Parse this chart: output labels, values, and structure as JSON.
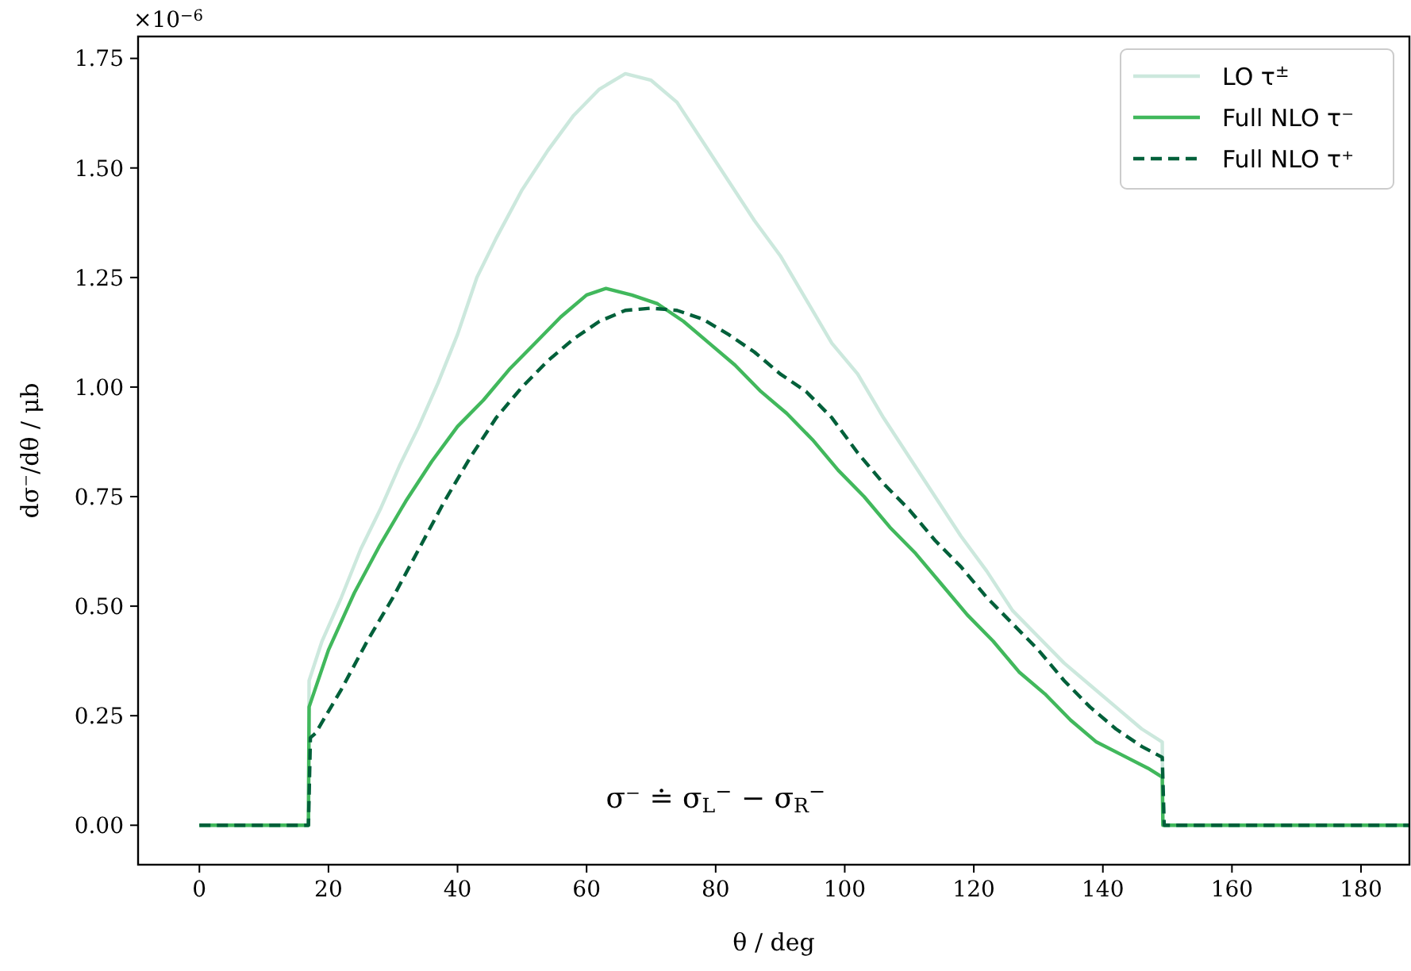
{
  "chart_data": {
    "type": "line",
    "xlabel": "θ / deg",
    "ylabel": "dσ⁻/dθ / μb",
    "xlim": [
      -9.5,
      187.5
    ],
    "ylim": [
      -0.09,
      1.8
    ],
    "xticks": [
      0,
      20,
      40,
      60,
      80,
      100,
      120,
      140,
      160,
      180
    ],
    "yticks": [
      {
        "value": 0,
        "label": "0.00"
      },
      {
        "value": 0.25,
        "label": "0.25"
      },
      {
        "value": 0.5,
        "label": "0.50"
      },
      {
        "value": 0.75,
        "label": "0.75"
      },
      {
        "value": 1,
        "label": "1.00"
      },
      {
        "value": 1.25,
        "label": "1.25"
      },
      {
        "value": 1.5,
        "label": "1.50"
      },
      {
        "value": 1.75,
        "label": "1.75"
      }
    ],
    "grid": false,
    "legend": "top right",
    "annotations": [
      "σ⁻ ≐ σ$_{L}$$^{−}$ − σ$_{R}$$^{−}$",
      "×10$^{−6}$"
    ],
    "series": [
      {
        "name": "LO τ$^{±}$",
        "color": "#cce8dd",
        "line_style": "solid",
        "x": [
          0,
          16.9,
          17,
          19,
          22,
          25,
          28,
          31,
          34,
          37,
          40,
          43,
          46,
          50,
          54,
          58,
          62,
          66,
          70,
          74,
          78,
          82,
          86,
          90,
          94,
          98,
          102,
          106,
          110,
          114,
          118,
          122,
          126,
          130,
          134,
          138,
          142,
          146,
          149.2,
          149.3,
          187.5
        ],
        "values": [
          0,
          0,
          0.33,
          0.42,
          0.52,
          0.63,
          0.72,
          0.82,
          0.91,
          1.01,
          1.12,
          1.25,
          1.34,
          1.45,
          1.54,
          1.62,
          1.68,
          1.715,
          1.7,
          1.65,
          1.56,
          1.47,
          1.38,
          1.3,
          1.2,
          1.1,
          1.03,
          0.93,
          0.84,
          0.75,
          0.66,
          0.58,
          0.49,
          0.43,
          0.37,
          0.32,
          0.27,
          0.22,
          0.19,
          0,
          0
        ]
      },
      {
        "name": "Full NLO τ⁻",
        "color": "#41b85c",
        "line_style": "solid",
        "x": [
          0,
          16.9,
          17,
          20,
          24,
          28,
          32,
          36,
          40,
          44,
          48,
          52,
          56,
          60,
          63,
          67,
          71,
          75,
          79,
          83,
          87,
          91,
          95,
          99,
          103,
          107,
          111,
          115,
          119,
          123,
          127,
          131,
          135,
          139,
          143,
          147,
          149.2,
          149.3,
          187.5
        ],
        "values": [
          0,
          0,
          0.27,
          0.4,
          0.53,
          0.64,
          0.74,
          0.83,
          0.91,
          0.97,
          1.04,
          1.1,
          1.16,
          1.21,
          1.225,
          1.21,
          1.19,
          1.15,
          1.1,
          1.05,
          0.99,
          0.94,
          0.88,
          0.81,
          0.75,
          0.68,
          0.62,
          0.55,
          0.48,
          0.42,
          0.35,
          0.3,
          0.24,
          0.19,
          0.16,
          0.13,
          0.11,
          0,
          0
        ]
      },
      {
        "name": "Full NLO τ⁺",
        "color": "#00603a",
        "line_style": "dashed",
        "x": [
          0,
          16.9,
          17.2,
          18,
          22,
          26,
          30,
          34,
          38,
          42,
          46,
          50,
          54,
          58,
          62,
          66,
          70,
          74,
          78,
          82,
          86,
          90,
          94,
          98,
          102,
          106,
          110,
          114,
          118,
          122,
          126,
          130,
          134,
          138,
          142,
          146,
          149.2,
          149.5,
          187.5
        ],
        "values": [
          0,
          0,
          0.2,
          0.21,
          0.31,
          0.42,
          0.52,
          0.63,
          0.74,
          0.84,
          0.93,
          1,
          1.06,
          1.11,
          1.15,
          1.175,
          1.18,
          1.175,
          1.155,
          1.12,
          1.08,
          1.03,
          0.99,
          0.93,
          0.85,
          0.78,
          0.72,
          0.65,
          0.59,
          0.52,
          0.46,
          0.4,
          0.33,
          0.27,
          0.22,
          0.18,
          0.155,
          0,
          0
        ]
      }
    ]
  }
}
